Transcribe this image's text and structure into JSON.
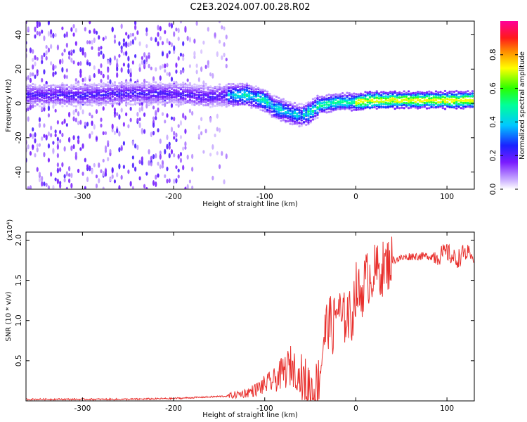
{
  "title": "C2E3.2024.007.00.28.R02",
  "chart_data": [
    {
      "type": "heatmap",
      "xlabel": "Height of straight line (km)",
      "ylabel": "Frequency (Hz)",
      "xlim": [
        -362,
        130
      ],
      "ylim": [
        -50,
        48
      ],
      "xticks": [
        -300,
        -200,
        -100,
        0,
        100
      ],
      "xtick_labels": [
        "-300",
        "-200",
        "-100",
        "0",
        "100"
      ],
      "yticks": [
        -40,
        -20,
        0,
        20,
        40
      ],
      "ytick_labels": [
        "-40",
        "-20",
        "0",
        "20",
        "40"
      ],
      "colorbar": {
        "label": "Normalized spectral amplitude",
        "range": [
          0,
          1
        ],
        "ticks": [
          0.0,
          0.2,
          0.4,
          0.6,
          0.8
        ],
        "tick_labels": [
          "0.0",
          "0.2",
          "0.4",
          "0.6",
          "0.8"
        ]
      },
      "ridge": {
        "x": [
          -362,
          -300,
          -250,
          -200,
          -180,
          -160,
          -140,
          -120,
          -100,
          -90,
          -80,
          -70,
          -60,
          -50,
          -45,
          -40,
          -30,
          -20,
          -10,
          0,
          20,
          50,
          80,
          100,
          130
        ],
        "frequency": [
          5,
          5,
          6,
          6,
          5,
          4,
          5,
          5,
          2,
          -2,
          -4,
          -6,
          -7,
          -5,
          -3,
          -1,
          0,
          1,
          1,
          1,
          2,
          2,
          2,
          2,
          2
        ]
      },
      "grid": false
    },
    {
      "type": "line",
      "xlabel": "Height of straight line (km)",
      "ylabel": "SNR (10 * v/v)",
      "y_multiplier": "(x10⁴)",
      "xlim": [
        -362,
        130
      ],
      "ylim": [
        0,
        2.1
      ],
      "xticks": [
        -300,
        -200,
        -100,
        0,
        100
      ],
      "xtick_labels": [
        "-300",
        "-200",
        "-100",
        "0",
        "100"
      ],
      "yticks": [
        0.5,
        1.0,
        1.5,
        2.0
      ],
      "ytick_labels": [
        "0.5",
        "1.0",
        "1.5",
        "2.0"
      ],
      "series": [
        {
          "color": "#e8302d",
          "x": [
            -362,
            -300,
            -250,
            -200,
            -180,
            -160,
            -140,
            -120,
            -110,
            -100,
            -90,
            -80,
            -70,
            -60,
            -50,
            -45,
            -40,
            -35,
            -30,
            -25,
            -20,
            -15,
            -10,
            -5,
            0,
            5,
            10,
            15,
            20,
            30,
            40,
            60,
            80,
            90,
            100,
            110,
            120,
            130
          ],
          "y": [
            0.02,
            0.02,
            0.02,
            0.03,
            0.04,
            0.05,
            0.06,
            0.1,
            0.14,
            0.2,
            0.25,
            0.35,
            0.45,
            0.25,
            0.15,
            0.1,
            0.3,
            0.8,
            1.0,
            0.9,
            1.2,
            0.95,
            1.1,
            1.0,
            1.4,
            1.3,
            1.5,
            1.55,
            1.6,
            1.65,
            1.75,
            1.8,
            1.8,
            1.8,
            1.85,
            1.75,
            1.85,
            1.75
          ]
        }
      ],
      "grid": false
    }
  ]
}
